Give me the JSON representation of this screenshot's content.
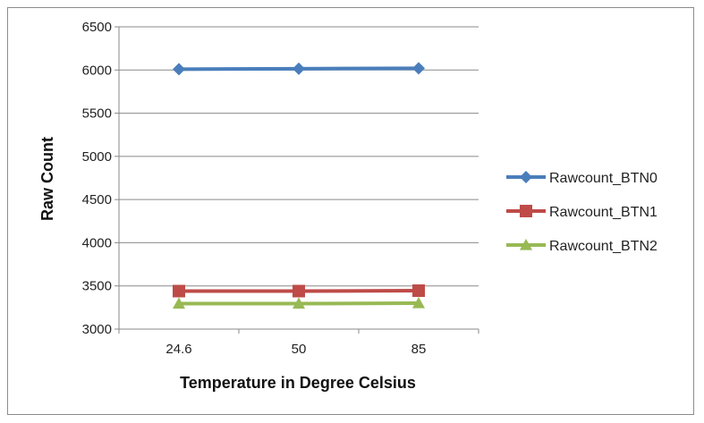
{
  "chart_data": {
    "type": "line",
    "title": "",
    "xlabel": "Temperature in Degree Celsius",
    "ylabel": "Raw Count",
    "categories": [
      "24.6",
      "50",
      "85"
    ],
    "ylim": [
      3000,
      6500
    ],
    "yticks": [
      3000,
      3500,
      4000,
      4500,
      5000,
      5500,
      6000,
      6500
    ],
    "grid": true,
    "legend_position": "right",
    "series": [
      {
        "name": "Rawcount_BTN0",
        "values": [
          6010,
          6015,
          6020
        ],
        "color": "#4a7ebb",
        "marker": "diamond"
      },
      {
        "name": "Rawcount_BTN1",
        "values": [
          3440,
          3440,
          3445
        ],
        "color": "#be4b48",
        "marker": "square"
      },
      {
        "name": "Rawcount_BTN2",
        "values": [
          3295,
          3295,
          3300
        ],
        "color": "#98b954",
        "marker": "triangle"
      }
    ]
  }
}
